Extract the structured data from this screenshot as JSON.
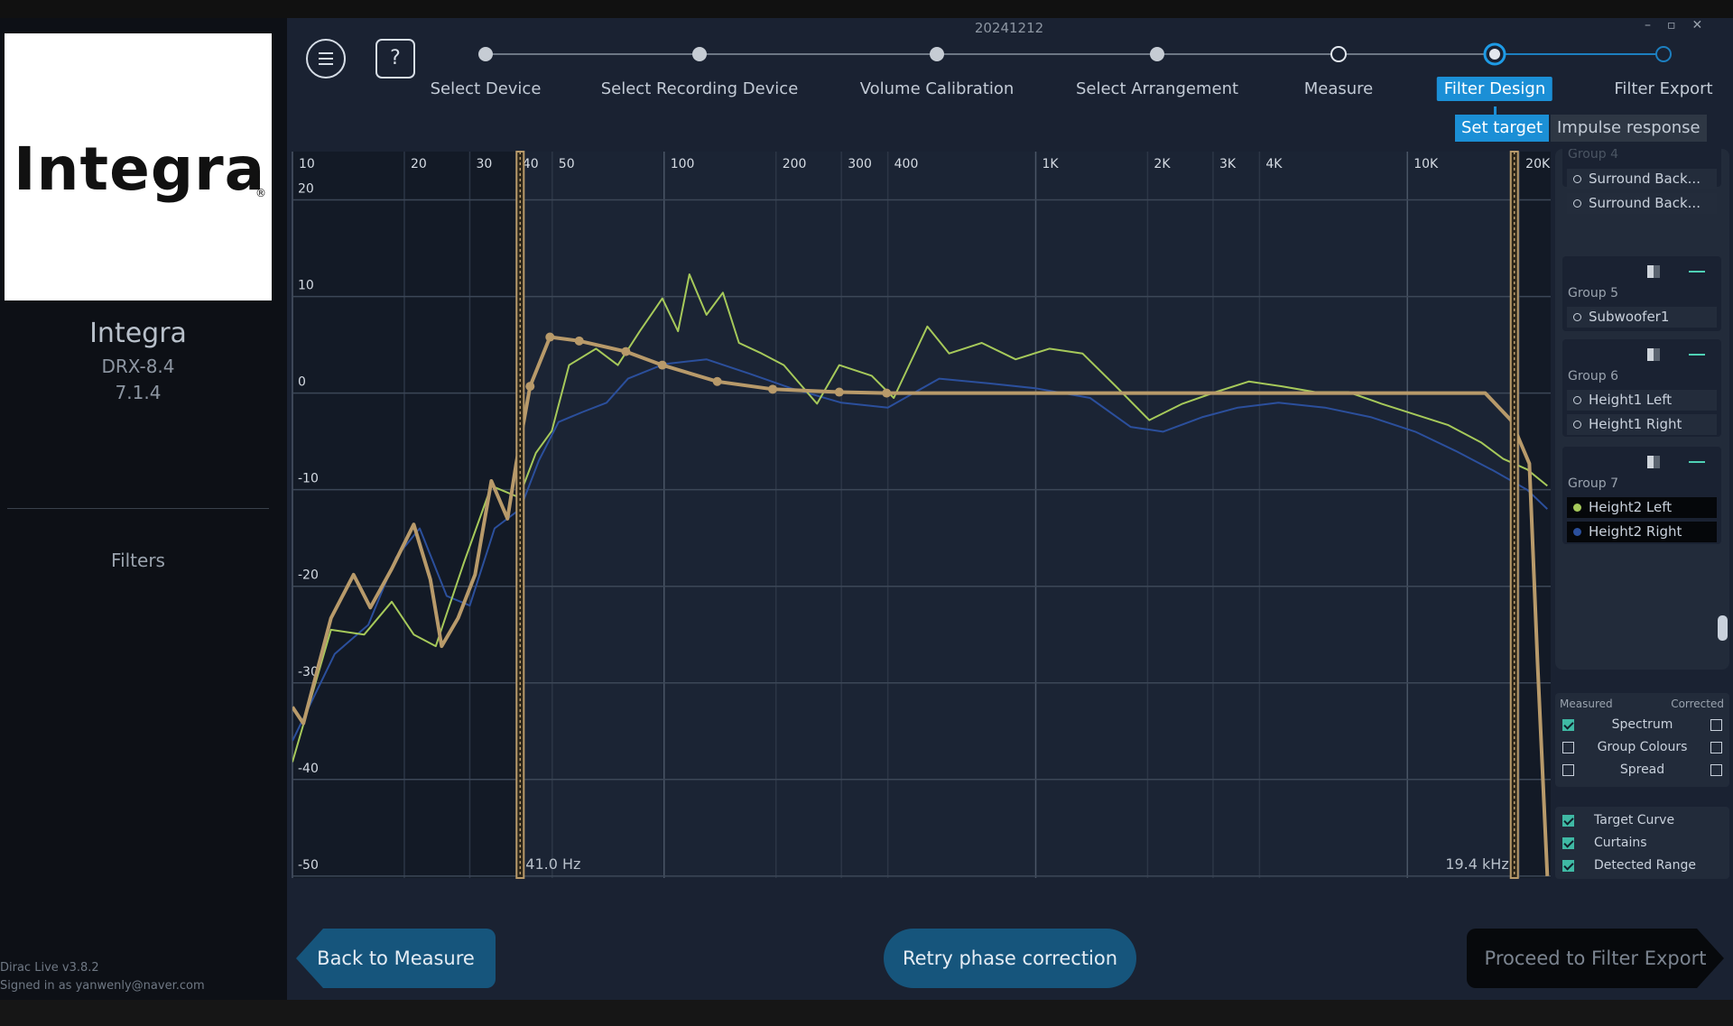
{
  "app": {
    "date": "20241212"
  },
  "sidebar": {
    "logo": "Integra",
    "logo_mark": "®",
    "brand": "Integra",
    "model": "DRX-8.4",
    "config": "7.1.4",
    "nav": "Filters",
    "version": "Dirac Live v3.8.2",
    "signed_in": "Signed in as yanwenly@naver.com"
  },
  "steps": [
    {
      "label": "Select Device",
      "state": "done"
    },
    {
      "label": "Select Recording Device",
      "state": "done"
    },
    {
      "label": "Volume Calibration",
      "state": "done"
    },
    {
      "label": "Select Arrangement",
      "state": "done"
    },
    {
      "label": "Measure",
      "state": "visited"
    },
    {
      "label": "Filter Design",
      "state": "current"
    },
    {
      "label": "Filter Export",
      "state": "pending"
    }
  ],
  "tabs": [
    {
      "label": "Set target",
      "active": true
    },
    {
      "label": "Impulse response",
      "active": false
    }
  ],
  "chart_data": {
    "type": "line",
    "log_x": true,
    "grid": true,
    "xlim": [
      10,
      24300
    ],
    "ylim": [
      -50.2,
      25
    ],
    "xticks": [
      10,
      20,
      30,
      40,
      50,
      100,
      200,
      300,
      400,
      {
        "value": 1000,
        "label": "1K"
      },
      {
        "value": 2000,
        "label": "2K"
      },
      {
        "value": 3000,
        "label": "3K"
      },
      {
        "value": 4000,
        "label": "4K"
      },
      {
        "value": 10000,
        "label": "10K"
      },
      {
        "value": 20000,
        "label": "20K"
      }
    ],
    "yticks": [
      20,
      10,
      0,
      -10,
      -20,
      -30,
      -40,
      -50
    ],
    "curtains": [
      {
        "value": 41,
        "label": "41.0 Hz"
      },
      {
        "value": 19400,
        "label": "19.4 kHz"
      }
    ],
    "series": [
      {
        "name": "Height2 Right",
        "color": "#2b4f9c",
        "x": [
          10,
          13,
          16,
          19,
          22,
          26,
          30,
          35,
          41,
          46,
          52,
          60,
          70,
          80,
          100,
          130,
          170,
          220,
          300,
          400,
          550,
          750,
          1000,
          1400,
          1800,
          2200,
          2800,
          3500,
          4500,
          6000,
          8000,
          10500,
          13500,
          17000,
          21000,
          23800
        ],
        "values": [
          -36,
          -27,
          -24,
          -17,
          -14,
          -21,
          -22,
          -14,
          -12,
          -7,
          -3,
          -2,
          -1,
          1.5,
          3,
          3.5,
          2,
          0.5,
          -1,
          -1.5,
          1.5,
          1,
          0.5,
          -0.5,
          -3.5,
          -4,
          -2.5,
          -1.5,
          -1,
          -1.5,
          -2.5,
          -4,
          -6,
          -8,
          -10,
          -12
        ]
      },
      {
        "name": "Height2 Left",
        "color": "#a6c95a",
        "x": [
          10,
          12.7,
          15.6,
          18.5,
          21.2,
          24.3,
          28.9,
          34.3,
          40.7,
          45.2,
          49.9,
          55.5,
          65.6,
          75.1,
          86,
          98.9,
          109,
          117,
          130,
          144,
          159,
          183,
          210,
          258,
          296,
          362,
          415,
          511,
          585,
          716,
          883,
          1088,
          1336,
          1643,
          2021,
          2481,
          3048,
          3742,
          4594,
          5645,
          6935,
          8514,
          10460,
          12850,
          15780,
          18100,
          21000,
          23800
        ],
        "values": [
          -38.2,
          -24.5,
          -25,
          -21.6,
          -25,
          -26.2,
          -17.6,
          -9.6,
          -10.8,
          -6.2,
          -3.9,
          2.9,
          4.6,
          2.9,
          6.4,
          9.8,
          6.4,
          12.3,
          8.1,
          10.4,
          5.2,
          4.1,
          2.9,
          -1.1,
          2.9,
          1.8,
          -0.5,
          6.9,
          4.1,
          5.2,
          3.5,
          4.6,
          4.1,
          0.7,
          -2.8,
          -1.1,
          0.1,
          1.2,
          0.7,
          0.1,
          0.1,
          -1.1,
          -2.2,
          -3.3,
          -5.1,
          -6.8,
          -7.9,
          -9.6
        ]
      },
      {
        "name": "Target Curve",
        "color": "#b89a6a",
        "x": [
          10,
          10.7,
          12.7,
          14.6,
          16.2,
          18.5,
          21.2,
          23.5,
          25.2,
          27.9,
          31,
          34.3,
          37.9,
          40,
          43.6,
          49.3,
          59.1,
          78.9,
          98.9,
          139,
          196,
          296,
          397,
          16200,
          19000,
          21300,
          22400,
          23800
        ],
        "values": [
          -32.5,
          -34.2,
          -23.3,
          -18.8,
          -22.2,
          -18.2,
          -13.6,
          -19.3,
          -26.2,
          -23.3,
          -18.8,
          -9.1,
          -13,
          -7.3,
          0.7,
          5.8,
          5.4,
          4.3,
          2.9,
          1.2,
          0.4,
          0.1,
          0,
          0,
          -2.8,
          -7.3,
          -27.8,
          -50
        ]
      }
    ]
  },
  "panel": {
    "groups": [
      {
        "label": "Group 4",
        "channels": [
          "Surround Back...",
          "Surround Back..."
        ]
      },
      {
        "label": "Group 5",
        "channels": [
          "Subwoofer1"
        ]
      },
      {
        "label": "Group 6",
        "channels": [
          "Height1 Left",
          "Height1 Right"
        ]
      },
      {
        "label": "Group 7"
      }
    ],
    "columns": [
      "Measured",
      "Corrected"
    ],
    "display": [
      {
        "label": "Spectrum",
        "measured": true,
        "corrected": false
      },
      {
        "label": "Group Colours",
        "measured": false,
        "corrected": false
      },
      {
        "label": "Spread",
        "measured": false,
        "corrected": false
      }
    ],
    "overlays": [
      {
        "label": "Target Curve",
        "checked": true
      },
      {
        "label": "Curtains",
        "checked": true
      },
      {
        "label": "Detected Range",
        "checked": true
      }
    ]
  },
  "buttons": {
    "back": "Back to Measure",
    "retry": "Retry phase correction",
    "proceed": "Proceed to Filter Export"
  }
}
